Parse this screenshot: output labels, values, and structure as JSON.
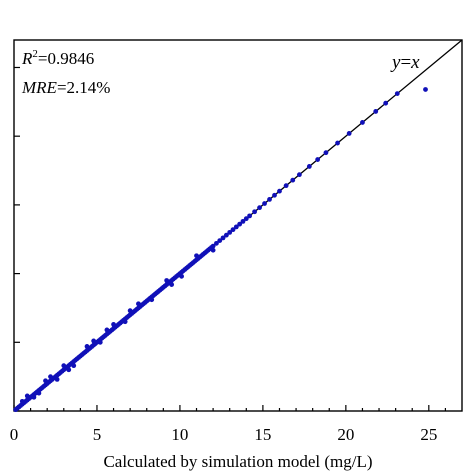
{
  "chart_data": {
    "type": "scatter",
    "title": "",
    "xlabel": "Calculated by simulation model (mg/L)",
    "ylabel": "",
    "xlim": [
      0,
      27
    ],
    "ylim": [
      0,
      27
    ],
    "x_ticks": [
      0,
      5,
      10,
      15,
      20,
      25
    ],
    "x_tick_labels": [
      "0",
      "5",
      "10",
      "15",
      "20",
      "25"
    ],
    "grid": false,
    "legend": "none",
    "point_color": "#1010b8",
    "annotations": {
      "r2_symbol": "R",
      "r2_superscript": "2",
      "r2_value": "=0.9846",
      "mre_symbol": "MRE",
      "mre_value": "=2.14%",
      "line_y": "y",
      "line_eq": "=",
      "line_x": "x"
    },
    "reference_line": {
      "x": [
        0,
        27
      ],
      "y": [
        0,
        27
      ]
    },
    "series": [
      {
        "x": [
          0.1,
          0.2,
          0.3,
          0.4,
          0.5,
          0.6,
          0.7,
          0.8,
          0.9,
          1.0,
          1.1,
          1.2,
          1.3,
          1.4,
          1.5,
          1.6,
          1.7,
          1.8,
          1.9,
          2.0,
          2.1,
          2.2,
          2.3,
          2.4,
          2.5,
          2.6,
          2.7,
          2.8,
          2.9,
          3.0,
          3.1,
          3.2,
          3.3,
          3.4,
          3.5,
          3.6,
          3.7,
          3.8,
          3.9,
          4.0,
          4.1,
          4.2,
          4.3,
          4.4,
          4.5,
          4.6,
          4.7,
          4.8,
          4.9,
          5.0,
          5.1,
          5.2,
          5.3,
          5.4,
          5.5,
          5.6,
          5.7,
          5.8,
          5.9,
          6.0,
          6.1,
          6.2,
          6.3,
          6.4,
          6.5,
          6.6,
          6.7,
          6.8,
          6.9,
          7.0,
          7.1,
          7.2,
          7.3,
          7.4,
          7.5,
          7.6,
          7.7,
          7.8,
          7.9,
          8.0,
          8.1,
          8.2,
          8.3,
          8.4,
          8.5,
          8.6,
          8.7,
          8.8,
          8.9,
          9.0,
          9.1,
          9.2,
          9.3,
          9.4,
          9.5,
          9.6,
          9.7,
          9.8,
          9.9,
          10.0,
          10.1,
          10.2,
          10.3,
          10.4,
          10.5,
          10.6,
          10.7,
          10.8,
          10.9,
          11.0,
          11.1,
          11.2,
          11.3,
          11.4,
          11.5,
          11.6,
          11.7,
          11.8,
          11.9,
          12.0,
          12.2,
          12.4,
          12.6,
          12.8,
          13.0,
          13.2,
          13.4,
          13.6,
          13.8,
          14.0,
          14.2,
          14.5,
          14.8,
          15.1,
          15.4,
          15.7,
          16.0,
          16.4,
          16.8,
          17.2,
          17.8,
          18.3,
          18.8,
          19.5,
          20.2,
          21.0,
          21.8,
          22.4,
          23.1,
          24.8,
          0.8,
          1.5,
          2.2,
          3.0,
          3.6,
          4.4,
          5.2,
          6.0,
          6.7,
          7.5,
          8.3,
          9.2,
          10.1,
          11.0,
          12.0,
          2.6,
          4.8,
          7.0,
          9.5,
          0.5,
          1.2,
          1.9,
          3.3,
          5.6
        ],
        "y": [
          0.1,
          0.2,
          0.3,
          0.4,
          0.5,
          0.6,
          0.7,
          0.8,
          0.9,
          1.0,
          1.1,
          1.2,
          1.3,
          1.4,
          1.5,
          1.6,
          1.7,
          1.8,
          1.9,
          2.0,
          2.1,
          2.2,
          2.3,
          2.4,
          2.5,
          2.6,
          2.7,
          2.8,
          2.9,
          3.0,
          3.1,
          3.2,
          3.3,
          3.4,
          3.5,
          3.6,
          3.7,
          3.8,
          3.9,
          4.0,
          4.1,
          4.2,
          4.3,
          4.4,
          4.5,
          4.6,
          4.7,
          4.8,
          4.9,
          5.0,
          5.1,
          5.2,
          5.3,
          5.4,
          5.5,
          5.6,
          5.7,
          5.8,
          5.9,
          6.0,
          6.1,
          6.2,
          6.3,
          6.4,
          6.5,
          6.6,
          6.7,
          6.8,
          6.9,
          7.0,
          7.1,
          7.2,
          7.3,
          7.4,
          7.5,
          7.6,
          7.7,
          7.8,
          7.9,
          8.0,
          8.1,
          8.2,
          8.3,
          8.4,
          8.5,
          8.6,
          8.7,
          8.8,
          8.9,
          9.0,
          9.1,
          9.2,
          9.3,
          9.4,
          9.5,
          9.6,
          9.7,
          9.8,
          9.9,
          10.0,
          10.1,
          10.2,
          10.3,
          10.4,
          10.5,
          10.6,
          10.7,
          10.8,
          10.9,
          11.0,
          11.1,
          11.2,
          11.3,
          11.4,
          11.5,
          11.6,
          11.7,
          11.8,
          11.9,
          12.0,
          12.2,
          12.4,
          12.6,
          12.8,
          13.0,
          13.2,
          13.4,
          13.6,
          13.8,
          14.0,
          14.2,
          14.5,
          14.8,
          15.1,
          15.4,
          15.7,
          16.0,
          16.4,
          16.8,
          17.2,
          17.8,
          18.3,
          18.8,
          19.5,
          20.2,
          21.0,
          21.8,
          22.4,
          23.1,
          23.4,
          1.1,
          1.3,
          2.5,
          3.3,
          3.3,
          4.7,
          5.0,
          6.3,
          6.5,
          7.8,
          8.1,
          9.5,
          9.8,
          11.3,
          11.7,
          2.3,
          5.1,
          7.3,
          9.2,
          0.7,
          1.0,
          2.2,
          3.0,
          5.9
        ]
      }
    ]
  }
}
